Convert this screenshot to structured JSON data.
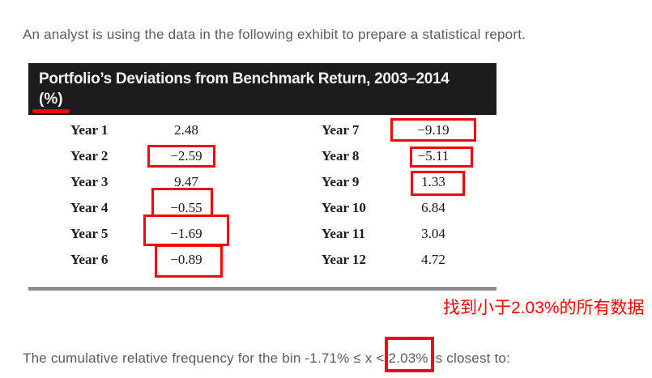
{
  "page": {
    "intro": "An analyst is using the data in the following exhibit to prepare a statistical report.",
    "annotation_cn": "找到小于2.03%的所有数据",
    "question": {
      "before": "The cumulative relative frequency for the bin -1.71% ≤ x < ",
      "boxed": "2.03%",
      "after": " is closest to:"
    }
  },
  "exhibit": {
    "title_line1": "Portfolio’s Deviations from Benchmark Return, 2003–2014",
    "title_line2": "(%)",
    "rows": [
      {
        "label_left": "Year 1",
        "value_left": "2.48",
        "boxed_left": false,
        "label_right": "Year 7",
        "value_right": "−9.19",
        "boxed_right": true
      },
      {
        "label_left": "Year 2",
        "value_left": "−2.59",
        "boxed_left": true,
        "label_right": "Year 8",
        "value_right": "−5.11",
        "boxed_right": true
      },
      {
        "label_left": "Year 3",
        "value_left": "9.47",
        "boxed_left": false,
        "label_right": "Year 9",
        "value_right": "1.33",
        "boxed_right": true
      },
      {
        "label_left": "Year 4",
        "value_left": "−0.55",
        "boxed_left": true,
        "label_right": "Year 10",
        "value_right": "6.84",
        "boxed_right": false
      },
      {
        "label_left": "Year 5",
        "value_left": "−1.69",
        "boxed_left": true,
        "label_right": "Year 11",
        "value_right": "3.04",
        "boxed_right": false
      },
      {
        "label_left": "Year 6",
        "value_left": "−0.89",
        "boxed_left": true,
        "label_right": "Year 12",
        "value_right": "4.72",
        "boxed_right": false
      }
    ]
  },
  "colors": {
    "annotation_red": "#f10a0a",
    "chinese_red": "#fe0000",
    "header_bg": "#1d1b1b",
    "header_text": "#f3f3f3",
    "body_text": "#5b5b5b",
    "table_text": "#1c1c1c",
    "bottom_rule": "#8c8c8c"
  }
}
